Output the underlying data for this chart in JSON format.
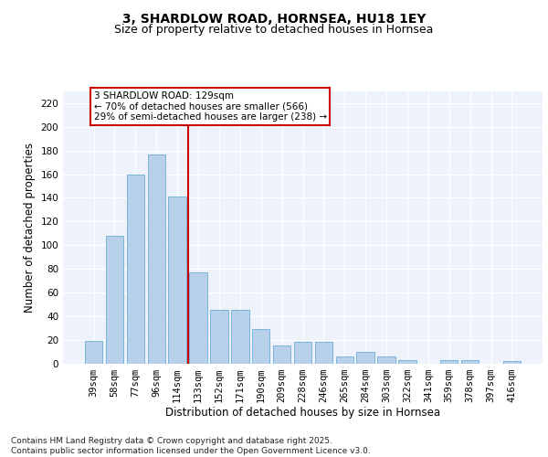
{
  "title1": "3, SHARDLOW ROAD, HORNSEA, HU18 1EY",
  "title2": "Size of property relative to detached houses in Hornsea",
  "xlabel": "Distribution of detached houses by size in Hornsea",
  "ylabel": "Number of detached properties",
  "categories": [
    "39sqm",
    "58sqm",
    "77sqm",
    "96sqm",
    "114sqm",
    "133sqm",
    "152sqm",
    "171sqm",
    "190sqm",
    "209sqm",
    "228sqm",
    "246sqm",
    "265sqm",
    "284sqm",
    "303sqm",
    "322sqm",
    "341sqm",
    "359sqm",
    "378sqm",
    "397sqm",
    "416sqm"
  ],
  "values": [
    19,
    108,
    160,
    177,
    141,
    77,
    45,
    45,
    29,
    15,
    18,
    18,
    6,
    10,
    6,
    3,
    0,
    3,
    3,
    0,
    2
  ],
  "bar_color": "#b8d0ea",
  "bar_edge_color": "#6baed6",
  "vline_x": 4.5,
  "vline_color": "#cc0000",
  "annotation_text": "3 SHARDLOW ROAD: 129sqm\n← 70% of detached houses are smaller (566)\n29% of semi-detached houses are larger (238) →",
  "annotation_box_facecolor": "#ffffff",
  "annotation_box_edgecolor": "#cc0000",
  "ylim": [
    0,
    230
  ],
  "yticks": [
    0,
    20,
    40,
    60,
    80,
    100,
    120,
    140,
    160,
    180,
    200,
    220
  ],
  "background_color": "#edf2fb",
  "footer": "Contains HM Land Registry data © Crown copyright and database right 2025.\nContains public sector information licensed under the Open Government Licence v3.0.",
  "title_fontsize": 10,
  "subtitle_fontsize": 9,
  "axis_label_fontsize": 8.5,
  "tick_fontsize": 7.5,
  "annotation_fontsize": 7.5,
  "footer_fontsize": 6.5
}
